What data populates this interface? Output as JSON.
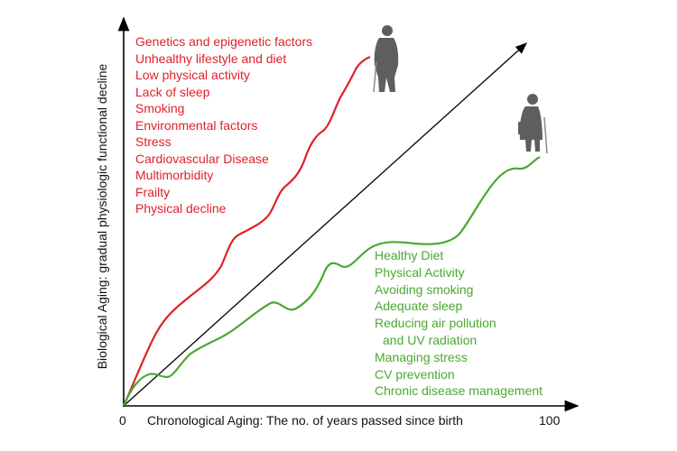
{
  "axes": {
    "y_label": "Biological  Aging: gradual physiologic functional decline",
    "x_label": "Chronological Aging: The no. of years passed since birth",
    "x_min_label": "0",
    "x_max_label": "100"
  },
  "negative_factors": {
    "color": "#e0202a",
    "items": [
      "Genetics and epigenetic factors",
      "Unhealthy lifestyle and diet",
      "Low physical activity",
      "Lack of sleep",
      "Smoking",
      "Environmental factors",
      "Stress",
      "Cardiovascular Disease",
      "Multimorbidity",
      "Frailty",
      "Physical decline"
    ]
  },
  "positive_factors": {
    "color": "#4aa832",
    "items": [
      "Healthy Diet",
      "Physical Activity",
      "Avoiding smoking",
      "Adequate sleep",
      "Reducing air pollution",
      "and UV radiation",
      "Managing stress",
      "CV prevention",
      "Chronic disease management"
    ]
  },
  "icons": {
    "accelerated_ager": "elderly-man-with-cane-silhouette",
    "healthy_ager": "elderly-woman-with-cane-silhouette"
  }
}
